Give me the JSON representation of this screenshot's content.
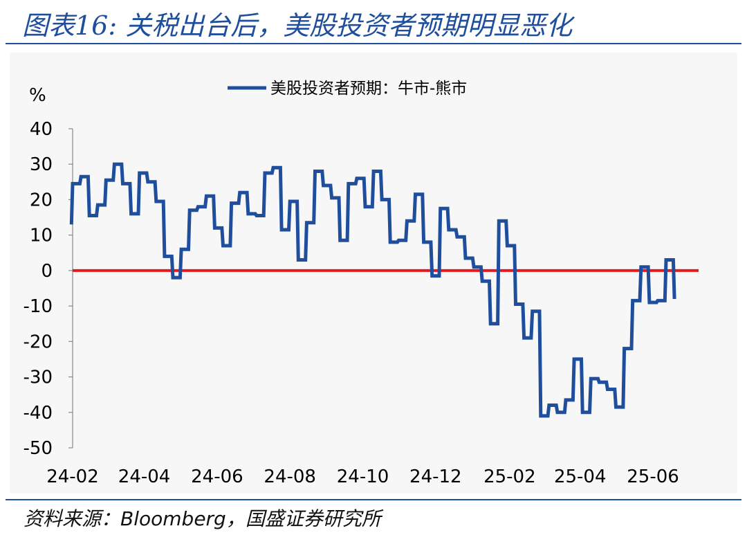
{
  "header": {
    "title": "图表16: 关税出台后，美股投资者预期明显恶化"
  },
  "footer": {
    "source_label": "资料来源：",
    "source_brand": "Bloomberg",
    "source_rest": "，国盛证券研究所"
  },
  "chart_data": {
    "type": "line",
    "title": "",
    "xlabel": "",
    "ylabel": "%",
    "ylim": [
      -50,
      40
    ],
    "yticks": [
      "40",
      "30",
      "20",
      "10",
      "0",
      "-10",
      "-20",
      "-30",
      "-40",
      "-50"
    ],
    "xticks": [
      "24-02",
      "24-04",
      "24-06",
      "24-08",
      "24-10",
      "24-12",
      "25-02",
      "25-04",
      "25-06"
    ],
    "legend": {
      "position": "top-center"
    },
    "reference_line": {
      "y": 0,
      "color": "#e8191c"
    },
    "series": [
      {
        "name": "美股投资者预期：牛市-熊市",
        "color": "#1f4e9d",
        "x": [
          "2024-01-31",
          "2024-02-01",
          "2024-02-07",
          "2024-02-08",
          "2024-02-14",
          "2024-02-15",
          "2024-02-21",
          "2024-02-22",
          "2024-02-28",
          "2024-02-29",
          "2024-03-06",
          "2024-03-07",
          "2024-03-13",
          "2024-03-14",
          "2024-03-20",
          "2024-03-21",
          "2024-03-27",
          "2024-03-28",
          "2024-04-03",
          "2024-04-04",
          "2024-04-10",
          "2024-04-11",
          "2024-04-17",
          "2024-04-18",
          "2024-04-24",
          "2024-04-25",
          "2024-05-01",
          "2024-05-02",
          "2024-05-08",
          "2024-05-09",
          "2024-05-15",
          "2024-05-16",
          "2024-05-22",
          "2024-05-23",
          "2024-05-29",
          "2024-05-30",
          "2024-06-05",
          "2024-06-06",
          "2024-06-12",
          "2024-06-13",
          "2024-06-19",
          "2024-06-20",
          "2024-06-26",
          "2024-06-27",
          "2024-07-03",
          "2024-07-04",
          "2024-07-10",
          "2024-07-11",
          "2024-07-17",
          "2024-07-18",
          "2024-07-24",
          "2024-07-25",
          "2024-07-31",
          "2024-08-01",
          "2024-08-07",
          "2024-08-08",
          "2024-08-14",
          "2024-08-15",
          "2024-08-21",
          "2024-08-22",
          "2024-08-28",
          "2024-08-29",
          "2024-09-04",
          "2024-09-05",
          "2024-09-11",
          "2024-09-12",
          "2024-09-18",
          "2024-09-19",
          "2024-09-25",
          "2024-09-26",
          "2024-10-02",
          "2024-10-03",
          "2024-10-09",
          "2024-10-10",
          "2024-10-16",
          "2024-10-17",
          "2024-10-23",
          "2024-10-24",
          "2024-10-30",
          "2024-10-31",
          "2024-11-06",
          "2024-11-07",
          "2024-11-13",
          "2024-11-14",
          "2024-11-20",
          "2024-11-21",
          "2024-11-27",
          "2024-11-28",
          "2024-12-04",
          "2024-12-05",
          "2024-12-11",
          "2024-12-12",
          "2024-12-18",
          "2024-12-19",
          "2024-12-25",
          "2024-12-26",
          "2025-01-01",
          "2025-01-02",
          "2025-01-08",
          "2025-01-09",
          "2025-01-15",
          "2025-01-16",
          "2025-01-22",
          "2025-01-23",
          "2025-01-29",
          "2025-01-30",
          "2025-02-05",
          "2025-02-06",
          "2025-02-12",
          "2025-02-13",
          "2025-02-19",
          "2025-02-20",
          "2025-02-26",
          "2025-02-27",
          "2025-03-05",
          "2025-03-06",
          "2025-03-12",
          "2025-03-13",
          "2025-03-19",
          "2025-03-20",
          "2025-03-26",
          "2025-03-27",
          "2025-04-02",
          "2025-04-03",
          "2025-04-09",
          "2025-04-10",
          "2025-04-16",
          "2025-04-17",
          "2025-04-23",
          "2025-04-24",
          "2025-04-30",
          "2025-05-01",
          "2025-05-07",
          "2025-05-08",
          "2025-05-14",
          "2025-05-15",
          "2025-05-21",
          "2025-05-22",
          "2025-05-28",
          "2025-05-29",
          "2025-06-04",
          "2025-06-05",
          "2025-06-11",
          "2025-06-12",
          "2025-06-18",
          "2025-06-19"
        ],
        "values": [
          13,
          24.5,
          24.5,
          26.5,
          26.5,
          15.5,
          15.5,
          18.5,
          18.5,
          25.5,
          25.5,
          30,
          30,
          24.5,
          24.5,
          16,
          16,
          27.5,
          27.5,
          25,
          25,
          19.5,
          19.5,
          4,
          4,
          -2,
          -2,
          6,
          6,
          17,
          17,
          18,
          18,
          21,
          21,
          12,
          12,
          7,
          7,
          19,
          19,
          22,
          22,
          16,
          16,
          15.5,
          15.5,
          27.5,
          27.5,
          29,
          29,
          11.5,
          11.5,
          19.5,
          19.5,
          3,
          3,
          13.5,
          13.5,
          28,
          28,
          24,
          24,
          20.5,
          20.5,
          8.5,
          8.5,
          24.5,
          24.5,
          26,
          26,
          18,
          18,
          28,
          28,
          20,
          20,
          8,
          8,
          8.5,
          8.5,
          14,
          14,
          21.5,
          21.5,
          8,
          8,
          -1.5,
          -1.5,
          17.5,
          17.5,
          11.5,
          11.5,
          9.5,
          9.5,
          3.5,
          3.5,
          1,
          1,
          -3,
          -3,
          -15,
          -15,
          14,
          14,
          7,
          7,
          -9.5,
          -9.5,
          -19,
          -19,
          -11.5,
          -11.5,
          -41,
          -41,
          -38,
          -38,
          -40,
          -40,
          -36.5,
          -36.5,
          -25,
          -25,
          -40,
          -40,
          -30.5,
          -30.5,
          -31.5,
          -31.5,
          -33.5,
          -33.5,
          -38.5,
          -38.5,
          -22,
          -22,
          -8.5,
          -8.5,
          1,
          1,
          -9,
          -9,
          -8.5,
          -8.5,
          3,
          3,
          -8
        ]
      }
    ]
  }
}
